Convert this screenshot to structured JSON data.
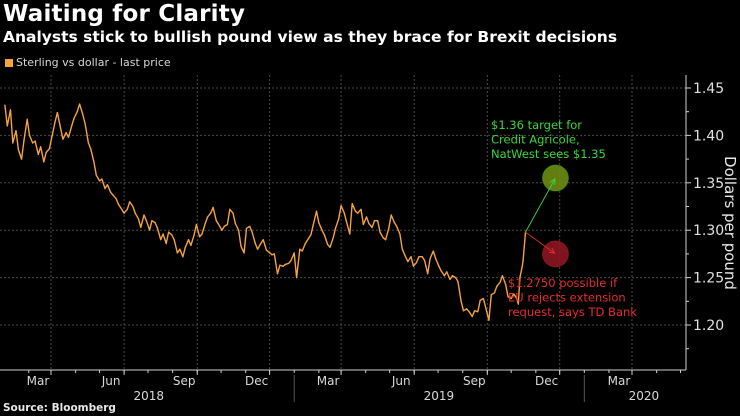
{
  "title": "Waiting for Clarity",
  "subtitle": "Analysts stick to bullish pound view as they brace for Brexit decisions",
  "legend": {
    "label": "Sterling vs dollar - last price",
    "color": "#f5a33c"
  },
  "source": "Source: Bloomberg",
  "chart_data": {
    "type": "line",
    "title": "Waiting for Clarity",
    "subtitle": "Analysts stick to bullish pound view as they brace for Brexit decisions",
    "xlabel": "",
    "ylabel": "Dollars per pound",
    "ylim": [
      1.16,
      1.465
    ],
    "xlim": [
      "2018-01-01",
      "2020-04-30"
    ],
    "grid": true,
    "legend_position": "top-left",
    "y_ticks": [
      "1.20",
      "1.25",
      "1.30",
      "1.35",
      "1.40",
      "1.45"
    ],
    "x_month_ticks": [
      {
        "label": "Mar",
        "date": "2018-02-28"
      },
      {
        "label": "Jun",
        "date": "2018-05-31"
      },
      {
        "label": "Sep",
        "date": "2018-08-31"
      },
      {
        "label": "Dec",
        "date": "2018-11-30"
      },
      {
        "label": "Mar",
        "date": "2019-02-28"
      },
      {
        "label": "Jun",
        "date": "2019-05-31"
      },
      {
        "label": "Sep",
        "date": "2019-08-31"
      },
      {
        "label": "Dec",
        "date": "2019-11-30"
      },
      {
        "label": "Mar",
        "date": "2020-02-29"
      }
    ],
    "x_year_labels": [
      {
        "label": "2018",
        "date": "2018-07-01"
      },
      {
        "label": "2019",
        "date": "2019-07-01"
      },
      {
        "label": "2020",
        "date": "2020-03-15"
      }
    ],
    "year_dividers": [
      "2018-12-31",
      "2019-12-31"
    ],
    "series": [
      {
        "name": "Sterling vs dollar - last price",
        "color": "#f5a33c",
        "points": [
          [
            "2018-01-01",
            1.432
          ],
          [
            "2018-01-04",
            1.41
          ],
          [
            "2018-01-08",
            1.427
          ],
          [
            "2018-01-11",
            1.392
          ],
          [
            "2018-01-15",
            1.405
          ],
          [
            "2018-01-18",
            1.385
          ],
          [
            "2018-01-22",
            1.375
          ],
          [
            "2018-01-25",
            1.395
          ],
          [
            "2018-01-29",
            1.417
          ],
          [
            "2018-02-01",
            1.4
          ],
          [
            "2018-02-05",
            1.392
          ],
          [
            "2018-02-08",
            1.394
          ],
          [
            "2018-02-12",
            1.38
          ],
          [
            "2018-02-15",
            1.388
          ],
          [
            "2018-02-19",
            1.372
          ],
          [
            "2018-02-22",
            1.382
          ],
          [
            "2018-02-26",
            1.386
          ],
          [
            "2018-03-01",
            1.398
          ],
          [
            "2018-03-05",
            1.414
          ],
          [
            "2018-03-08",
            1.424
          ],
          [
            "2018-03-12",
            1.408
          ],
          [
            "2018-03-15",
            1.396
          ],
          [
            "2018-03-19",
            1.403
          ],
          [
            "2018-03-22",
            1.398
          ],
          [
            "2018-03-26",
            1.41
          ],
          [
            "2018-03-29",
            1.418
          ],
          [
            "2018-04-02",
            1.425
          ],
          [
            "2018-04-05",
            1.433
          ],
          [
            "2018-04-09",
            1.422
          ],
          [
            "2018-04-12",
            1.412
          ],
          [
            "2018-04-16",
            1.392
          ],
          [
            "2018-04-19",
            1.386
          ],
          [
            "2018-04-23",
            1.372
          ],
          [
            "2018-04-26",
            1.358
          ],
          [
            "2018-04-30",
            1.352
          ],
          [
            "2018-05-03",
            1.354
          ],
          [
            "2018-05-07",
            1.344
          ],
          [
            "2018-05-10",
            1.348
          ],
          [
            "2018-05-14",
            1.34
          ],
          [
            "2018-05-17",
            1.337
          ],
          [
            "2018-05-21",
            1.333
          ],
          [
            "2018-05-24",
            1.327
          ],
          [
            "2018-05-28",
            1.322
          ],
          [
            "2018-05-31",
            1.318
          ],
          [
            "2018-06-04",
            1.322
          ],
          [
            "2018-06-07",
            1.33
          ],
          [
            "2018-06-11",
            1.325
          ],
          [
            "2018-06-14",
            1.318
          ],
          [
            "2018-06-18",
            1.312
          ],
          [
            "2018-06-21",
            1.303
          ],
          [
            "2018-06-25",
            1.316
          ],
          [
            "2018-06-28",
            1.31
          ],
          [
            "2018-07-02",
            1.3
          ],
          [
            "2018-07-05",
            1.31
          ],
          [
            "2018-07-09",
            1.308
          ],
          [
            "2018-07-12",
            1.302
          ],
          [
            "2018-07-16",
            1.29
          ],
          [
            "2018-07-19",
            1.296
          ],
          [
            "2018-07-23",
            1.286
          ],
          [
            "2018-07-26",
            1.298
          ],
          [
            "2018-07-30",
            1.295
          ],
          [
            "2018-08-02",
            1.29
          ],
          [
            "2018-08-06",
            1.276
          ],
          [
            "2018-08-09",
            1.28
          ],
          [
            "2018-08-13",
            1.272
          ],
          [
            "2018-08-16",
            1.282
          ],
          [
            "2018-08-20",
            1.29
          ],
          [
            "2018-08-23",
            1.284
          ],
          [
            "2018-08-27",
            1.295
          ],
          [
            "2018-08-30",
            1.306
          ],
          [
            "2018-09-03",
            1.293
          ],
          [
            "2018-09-06",
            1.296
          ],
          [
            "2018-09-10",
            1.307
          ],
          [
            "2018-09-13",
            1.314
          ],
          [
            "2018-09-17",
            1.318
          ],
          [
            "2018-09-20",
            1.324
          ],
          [
            "2018-09-24",
            1.31
          ],
          [
            "2018-09-27",
            1.306
          ],
          [
            "2018-10-01",
            1.3
          ],
          [
            "2018-10-04",
            1.304
          ],
          [
            "2018-10-08",
            1.306
          ],
          [
            "2018-10-11",
            1.322
          ],
          [
            "2018-10-15",
            1.318
          ],
          [
            "2018-10-18",
            1.307
          ],
          [
            "2018-10-22",
            1.3
          ],
          [
            "2018-10-25",
            1.283
          ],
          [
            "2018-10-29",
            1.276
          ],
          [
            "2018-11-01",
            1.302
          ],
          [
            "2018-11-05",
            1.304
          ],
          [
            "2018-11-08",
            1.298
          ],
          [
            "2018-11-12",
            1.286
          ],
          [
            "2018-11-15",
            1.28
          ],
          [
            "2018-11-19",
            1.286
          ],
          [
            "2018-11-22",
            1.29
          ],
          [
            "2018-11-26",
            1.279
          ],
          [
            "2018-11-29",
            1.277
          ],
          [
            "2018-12-03",
            1.274
          ],
          [
            "2018-12-06",
            1.275
          ],
          [
            "2018-12-10",
            1.254
          ],
          [
            "2018-12-13",
            1.263
          ],
          [
            "2018-12-17",
            1.262
          ],
          [
            "2018-12-20",
            1.264
          ],
          [
            "2018-12-24",
            1.265
          ],
          [
            "2018-12-27",
            1.268
          ],
          [
            "2018-12-31",
            1.276
          ],
          [
            "2019-01-03",
            1.25
          ],
          [
            "2019-01-07",
            1.28
          ],
          [
            "2019-01-10",
            1.278
          ],
          [
            "2019-01-14",
            1.286
          ],
          [
            "2019-01-17",
            1.29
          ],
          [
            "2019-01-21",
            1.295
          ],
          [
            "2019-01-24",
            1.306
          ],
          [
            "2019-01-28",
            1.32
          ],
          [
            "2019-01-31",
            1.308
          ],
          [
            "2019-02-04",
            1.3
          ],
          [
            "2019-02-07",
            1.295
          ],
          [
            "2019-02-11",
            1.285
          ],
          [
            "2019-02-14",
            1.282
          ],
          [
            "2019-02-18",
            1.292
          ],
          [
            "2019-02-21",
            1.302
          ],
          [
            "2019-02-25",
            1.312
          ],
          [
            "2019-02-28",
            1.326
          ],
          [
            "2019-03-04",
            1.318
          ],
          [
            "2019-03-07",
            1.308
          ],
          [
            "2019-03-11",
            1.296
          ],
          [
            "2019-03-14",
            1.328
          ],
          [
            "2019-03-18",
            1.32
          ],
          [
            "2019-03-21",
            1.318
          ],
          [
            "2019-03-25",
            1.322
          ],
          [
            "2019-03-28",
            1.306
          ],
          [
            "2019-04-01",
            1.314
          ],
          [
            "2019-04-04",
            1.307
          ],
          [
            "2019-04-08",
            1.303
          ],
          [
            "2019-04-11",
            1.31
          ],
          [
            "2019-04-15",
            1.31
          ],
          [
            "2019-04-18",
            1.298
          ],
          [
            "2019-04-22",
            1.292
          ],
          [
            "2019-04-25",
            1.29
          ],
          [
            "2019-04-29",
            1.302
          ],
          [
            "2019-05-02",
            1.316
          ],
          [
            "2019-05-06",
            1.308
          ],
          [
            "2019-05-09",
            1.304
          ],
          [
            "2019-05-13",
            1.296
          ],
          [
            "2019-05-16",
            1.28
          ],
          [
            "2019-05-20",
            1.272
          ],
          [
            "2019-05-23",
            1.267
          ],
          [
            "2019-05-27",
            1.272
          ],
          [
            "2019-05-30",
            1.262
          ],
          [
            "2019-06-03",
            1.266
          ],
          [
            "2019-06-06",
            1.272
          ],
          [
            "2019-06-10",
            1.272
          ],
          [
            "2019-06-13",
            1.268
          ],
          [
            "2019-06-17",
            1.254
          ],
          [
            "2019-06-20",
            1.27
          ],
          [
            "2019-06-24",
            1.278
          ],
          [
            "2019-06-27",
            1.27
          ],
          [
            "2019-07-01",
            1.262
          ],
          [
            "2019-07-04",
            1.257
          ],
          [
            "2019-07-08",
            1.252
          ],
          [
            "2019-07-11",
            1.256
          ],
          [
            "2019-07-15",
            1.248
          ],
          [
            "2019-07-18",
            1.252
          ],
          [
            "2019-07-22",
            1.25
          ],
          [
            "2019-07-25",
            1.246
          ],
          [
            "2019-07-29",
            1.225
          ],
          [
            "2019-08-01",
            1.215
          ],
          [
            "2019-08-05",
            1.217
          ],
          [
            "2019-08-08",
            1.214
          ],
          [
            "2019-08-12",
            1.209
          ],
          [
            "2019-08-15",
            1.215
          ],
          [
            "2019-08-19",
            1.214
          ],
          [
            "2019-08-22",
            1.226
          ],
          [
            "2019-08-26",
            1.228
          ],
          [
            "2019-08-29",
            1.218
          ],
          [
            "2019-09-02",
            1.205
          ],
          [
            "2019-09-05",
            1.232
          ],
          [
            "2019-09-09",
            1.234
          ],
          [
            "2019-09-12",
            1.241
          ],
          [
            "2019-09-16",
            1.245
          ],
          [
            "2019-09-19",
            1.252
          ],
          [
            "2019-09-23",
            1.243
          ],
          [
            "2019-09-26",
            1.23
          ],
          [
            "2019-09-30",
            1.228
          ],
          [
            "2019-10-03",
            1.233
          ],
          [
            "2019-10-07",
            1.228
          ],
          [
            "2019-10-09",
            1.222
          ],
          [
            "2019-10-11",
            1.25
          ],
          [
            "2019-10-14",
            1.262
          ],
          [
            "2019-10-15",
            1.268
          ],
          [
            "2019-10-16",
            1.278
          ],
          [
            "2019-10-17",
            1.288
          ],
          [
            "2019-10-18",
            1.298
          ]
        ]
      }
    ],
    "annotations": [
      {
        "text": [
          "$1.36 target for",
          "Credit Agricole,",
          "NatWest sees $1.35"
        ],
        "color": "#39d839",
        "target_value": 1.355,
        "target_date": "2019-12-01",
        "marker_fill": "#6d8c12"
      },
      {
        "text": [
          "$1.2750 possible if",
          "EU rejects extension",
          "request, says TD Bank"
        ],
        "color": "#e52d2d",
        "target_value": 1.275,
        "target_date": "2019-12-01",
        "marker_fill": "#8c1622"
      }
    ]
  }
}
